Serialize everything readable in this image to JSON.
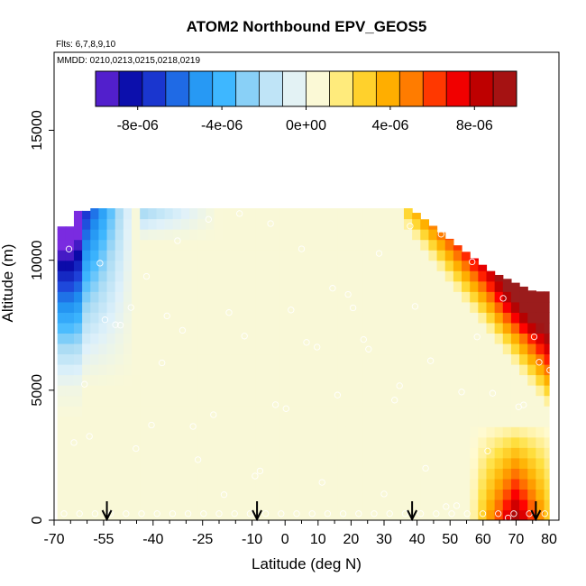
{
  "chart_data": {
    "type": "heatmap",
    "title": "ATOM2 Northbound EPV_GEOS5",
    "flights_label": "Flts: 6,7,8,9,10",
    "dates_label": "MMDD: 0210,0213,0215,0218,0219",
    "xlabel": "Latitude (deg N)",
    "ylabel": "Altitude (m)",
    "xlim": [
      -70,
      83
    ],
    "ylim": [
      0,
      18000
    ],
    "x_ticks": [
      -70,
      -55,
      -40,
      -25,
      -10,
      0,
      10,
      20,
      30,
      40,
      50,
      60,
      70,
      80
    ],
    "x_tick_labels": [
      "-70",
      "-55",
      "-40",
      "-25",
      "-10",
      "0",
      "10",
      "20",
      "30",
      "40",
      "50",
      "60",
      "70",
      "80"
    ],
    "x_minor_ticks": [
      -65,
      -60,
      -50,
      -45,
      -35,
      -30,
      -20,
      -15,
      -5,
      5,
      15,
      25,
      35,
      45,
      55,
      65,
      75
    ],
    "y_ticks": [
      0,
      5000,
      10000,
      15000
    ],
    "y_tick_labels": [
      "0",
      "5000",
      "10000",
      "15000"
    ],
    "colorbar": {
      "min": -1e-05,
      "max": 1e-05,
      "colors": [
        "#7a2be0",
        "#0a0aa8",
        "#1e40d8",
        "#1f8ff0",
        "#3fb8ff",
        "#a9dbf4",
        "#dff1fa",
        "#fffad0",
        "#ffe040",
        "#ffb000",
        "#ff6a00",
        "#ff0000",
        "#b80000",
        "#9b1c1c"
      ],
      "tick_values": [
        -8e-06,
        -4e-06,
        0,
        4e-06,
        8e-06
      ],
      "tick_labels": [
        "-8e-06",
        "-4e-06",
        "0e+00",
        "4e-06",
        "8e-06"
      ]
    },
    "data_extent": {
      "lat_min": -69,
      "lat_max": 80,
      "alt_top": 12000
    },
    "flight_track_arrows_lat": [
      -54,
      -8.5,
      38.5,
      76
    ]
  }
}
